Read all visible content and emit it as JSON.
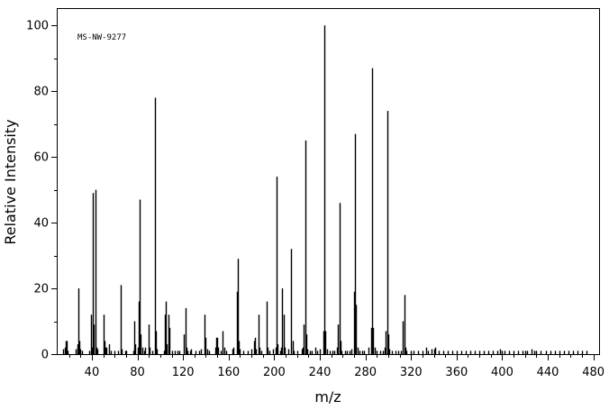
{
  "chart_data": {
    "type": "bar",
    "style": "mass-spectrum-stick",
    "title": "",
    "annotation": "MS-NW-9277",
    "xlabel": "m/z",
    "ylabel": "Relative Intensity",
    "xlim": [
      10,
      485
    ],
    "ylim": [
      0,
      105
    ],
    "x_ticks": [
      40,
      80,
      120,
      160,
      200,
      240,
      280,
      320,
      360,
      400,
      440,
      480
    ],
    "y_ticks": [
      0,
      20,
      40,
      60,
      80,
      100
    ],
    "grid": false,
    "legend": "none",
    "color": "#000000",
    "peaks": [
      [
        15,
        1.5
      ],
      [
        16,
        2
      ],
      [
        17,
        4
      ],
      [
        18,
        4
      ],
      [
        19,
        1
      ],
      [
        26,
        1.5
      ],
      [
        27,
        3
      ],
      [
        28,
        20
      ],
      [
        29,
        4
      ],
      [
        30,
        1.5
      ],
      [
        31,
        1
      ],
      [
        38,
        1
      ],
      [
        39,
        12
      ],
      [
        40,
        2
      ],
      [
        41,
        49
      ],
      [
        42,
        9
      ],
      [
        43,
        50
      ],
      [
        44,
        2
      ],
      [
        45,
        1.5
      ],
      [
        50,
        12
      ],
      [
        51,
        4
      ],
      [
        52,
        2
      ],
      [
        53,
        2
      ],
      [
        55,
        3
      ],
      [
        57,
        1
      ],
      [
        60,
        1
      ],
      [
        63,
        1
      ],
      [
        65,
        21
      ],
      [
        66,
        1.5
      ],
      [
        69,
        1
      ],
      [
        70,
        1
      ],
      [
        76,
        1
      ],
      [
        77,
        10
      ],
      [
        78,
        3
      ],
      [
        80,
        2
      ],
      [
        81,
        16
      ],
      [
        82,
        47
      ],
      [
        83,
        6
      ],
      [
        84,
        2
      ],
      [
        86,
        1
      ],
      [
        87,
        2
      ],
      [
        90,
        9
      ],
      [
        91,
        2
      ],
      [
        93,
        1
      ],
      [
        95,
        78
      ],
      [
        96,
        7
      ],
      [
        97,
        1.5
      ],
      [
        103,
        1
      ],
      [
        104,
        12
      ],
      [
        105,
        16
      ],
      [
        106,
        3
      ],
      [
        107,
        12
      ],
      [
        108,
        8
      ],
      [
        110,
        1
      ],
      [
        113,
        1
      ],
      [
        115,
        1
      ],
      [
        117,
        1
      ],
      [
        121,
        6
      ],
      [
        122,
        14
      ],
      [
        123,
        2
      ],
      [
        124,
        1
      ],
      [
        126,
        1
      ],
      [
        127,
        1.5
      ],
      [
        131,
        1
      ],
      [
        134,
        1
      ],
      [
        136,
        1.5
      ],
      [
        139,
        12
      ],
      [
        140,
        5
      ],
      [
        141,
        1.5
      ],
      [
        143,
        1
      ],
      [
        148,
        2
      ],
      [
        149,
        5
      ],
      [
        150,
        5
      ],
      [
        151,
        2
      ],
      [
        153,
        1
      ],
      [
        155,
        7
      ],
      [
        156,
        2
      ],
      [
        158,
        1
      ],
      [
        163,
        1.5
      ],
      [
        164,
        2
      ],
      [
        167,
        19
      ],
      [
        168,
        29
      ],
      [
        169,
        4
      ],
      [
        170,
        1.5
      ],
      [
        173,
        1
      ],
      [
        177,
        1
      ],
      [
        180,
        1.5
      ],
      [
        182,
        4
      ],
      [
        183,
        5
      ],
      [
        184,
        1.5
      ],
      [
        186,
        12
      ],
      [
        187,
        2
      ],
      [
        189,
        1
      ],
      [
        193,
        16
      ],
      [
        194,
        2
      ],
      [
        196,
        1
      ],
      [
        199,
        1.5
      ],
      [
        201,
        2
      ],
      [
        202,
        54
      ],
      [
        203,
        3
      ],
      [
        205,
        1
      ],
      [
        206,
        2
      ],
      [
        207,
        20
      ],
      [
        208,
        12
      ],
      [
        209,
        2
      ],
      [
        212,
        1.5
      ],
      [
        215,
        32
      ],
      [
        216,
        4
      ],
      [
        217,
        1
      ],
      [
        220,
        1
      ],
      [
        224,
        1.5
      ],
      [
        225,
        2
      ],
      [
        226,
        9
      ],
      [
        227,
        65
      ],
      [
        228,
        6
      ],
      [
        229,
        1.5
      ],
      [
        231,
        1
      ],
      [
        233,
        1
      ],
      [
        236,
        2
      ],
      [
        238,
        1
      ],
      [
        240,
        1.5
      ],
      [
        243,
        7
      ],
      [
        244,
        100
      ],
      [
        245,
        7
      ],
      [
        246,
        1.5
      ],
      [
        249,
        1
      ],
      [
        251,
        1
      ],
      [
        253,
        1
      ],
      [
        255,
        2
      ],
      [
        256,
        9
      ],
      [
        257,
        46
      ],
      [
        258,
        4
      ],
      [
        259,
        1
      ],
      [
        262,
        1
      ],
      [
        264,
        1
      ],
      [
        266,
        1
      ],
      [
        268,
        1.5
      ],
      [
        270,
        19
      ],
      [
        271,
        67
      ],
      [
        272,
        15
      ],
      [
        273,
        2
      ],
      [
        275,
        1
      ],
      [
        277,
        1
      ],
      [
        279,
        1
      ],
      [
        283,
        2
      ],
      [
        285,
        8
      ],
      [
        286,
        87
      ],
      [
        287,
        8
      ],
      [
        288,
        2
      ],
      [
        290,
        1
      ],
      [
        293,
        1
      ],
      [
        295,
        1
      ],
      [
        297,
        2
      ],
      [
        298,
        7
      ],
      [
        299,
        74
      ],
      [
        300,
        6
      ],
      [
        301,
        1.5
      ],
      [
        303,
        1
      ],
      [
        306,
        1
      ],
      [
        309,
        1
      ],
      [
        311,
        1
      ],
      [
        313,
        10
      ],
      [
        314,
        18
      ],
      [
        315,
        2
      ],
      [
        316,
        1
      ],
      [
        320,
        1
      ],
      [
        322,
        1
      ],
      [
        326,
        1
      ],
      [
        330,
        1
      ],
      [
        333,
        2
      ],
      [
        335,
        1
      ],
      [
        338,
        1.5
      ],
      [
        340,
        1.5
      ],
      [
        341,
        2
      ],
      [
        344,
        1
      ],
      [
        348,
        1
      ],
      [
        352,
        1
      ],
      [
        356,
        1
      ],
      [
        360,
        1
      ],
      [
        364,
        1
      ],
      [
        368,
        1
      ],
      [
        372,
        1
      ],
      [
        376,
        1
      ],
      [
        380,
        1
      ],
      [
        384,
        1
      ],
      [
        388,
        1
      ],
      [
        392,
        1
      ],
      [
        396,
        1
      ],
      [
        398,
        1.5
      ],
      [
        400,
        1
      ],
      [
        402,
        1
      ],
      [
        406,
        1
      ],
      [
        410,
        1
      ],
      [
        414,
        1
      ],
      [
        418,
        1
      ],
      [
        420,
        1
      ],
      [
        422,
        1
      ],
      [
        426,
        1.5
      ],
      [
        428,
        1
      ],
      [
        430,
        1
      ],
      [
        434,
        1
      ],
      [
        438,
        1
      ],
      [
        442,
        1
      ],
      [
        446,
        1
      ],
      [
        450,
        1
      ],
      [
        454,
        1
      ],
      [
        458,
        1
      ],
      [
        462,
        1
      ],
      [
        466,
        1
      ],
      [
        470,
        1
      ],
      [
        474,
        1
      ]
    ]
  }
}
